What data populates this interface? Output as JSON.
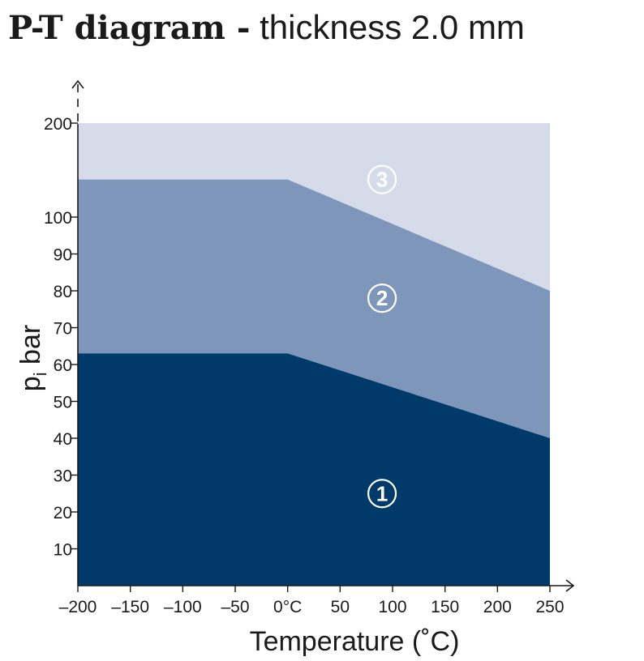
{
  "title": {
    "bold": "P-T diagram -",
    "light": "thickness 2.0 mm"
  },
  "chart_data": {
    "type": "area",
    "title": "P-T diagram - thickness 2.0 mm",
    "xlabel": "Temperature (˚C)",
    "ylabel_main": "p",
    "ylabel_sub": "i",
    "ylabel_rest": " bar",
    "xlim": [
      -200,
      250
    ],
    "ylim": [
      0,
      200
    ],
    "x_ticks": [
      {
        "value": -200,
        "label": "–200"
      },
      {
        "value": -150,
        "label": "–150"
      },
      {
        "value": -100,
        "label": "–100"
      },
      {
        "value": -50,
        "label": "–50"
      },
      {
        "value": 0,
        "label": "0°C"
      },
      {
        "value": 50,
        "label": "50"
      },
      {
        "value": 100,
        "label": "100"
      },
      {
        "value": 150,
        "label": "150"
      },
      {
        "value": 200,
        "label": "200"
      },
      {
        "value": 250,
        "label": "250"
      }
    ],
    "y_ticks": [
      {
        "value": 10,
        "label": "10"
      },
      {
        "value": 20,
        "label": "20"
      },
      {
        "value": 30,
        "label": "30"
      },
      {
        "value": 40,
        "label": "40"
      },
      {
        "value": 50,
        "label": "50"
      },
      {
        "value": 60,
        "label": "60"
      },
      {
        "value": 70,
        "label": "70"
      },
      {
        "value": 80,
        "label": "80"
      },
      {
        "value": 90,
        "label": "90"
      },
      {
        "value": 100,
        "label": "100"
      },
      {
        "value": 200,
        "label": "200"
      }
    ],
    "y_scale_note": "axis broken between 100 and 200 (compressed)",
    "series": [
      {
        "zone": "3",
        "color": "#d5dbe8",
        "upper": [
          [
            -200,
            200
          ],
          [
            250,
            200
          ]
        ]
      },
      {
        "zone": "2",
        "color": "#7d96b9",
        "upper": [
          [
            -200,
            140
          ],
          [
            0,
            140
          ],
          [
            250,
            80
          ]
        ]
      },
      {
        "zone": "1",
        "color": "#003a6b",
        "upper": [
          [
            -200,
            63
          ],
          [
            0,
            63
          ],
          [
            250,
            40
          ]
        ]
      }
    ],
    "zone_labels": [
      {
        "text": "3",
        "x": 90,
        "y": 140
      },
      {
        "text": "2",
        "x": 90,
        "y": 78
      },
      {
        "text": "1",
        "x": 90,
        "y": 25
      }
    ],
    "grid": false,
    "legend": "none"
  }
}
